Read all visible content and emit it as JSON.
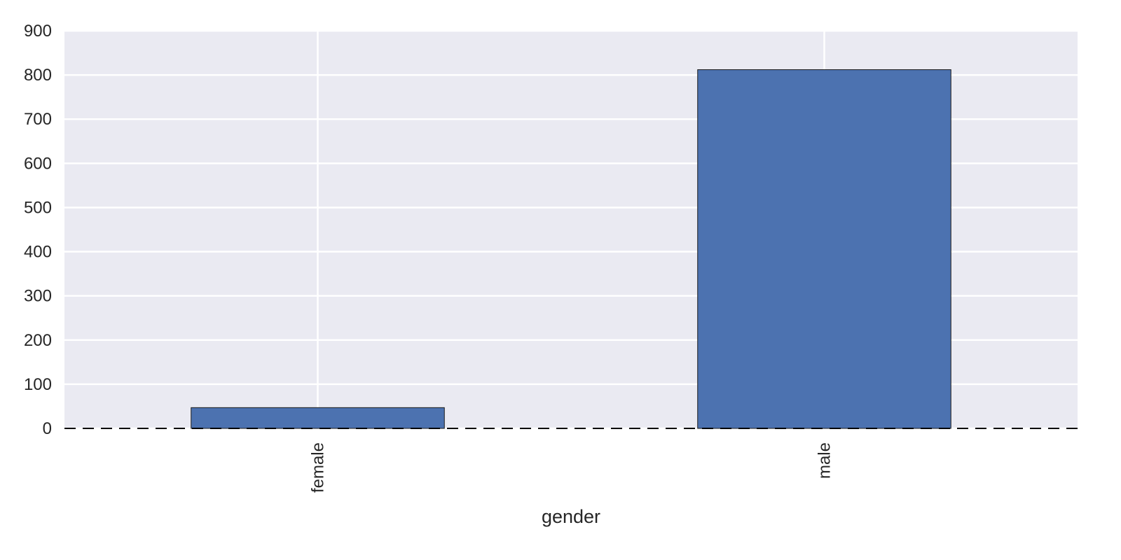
{
  "chart_data": {
    "type": "bar",
    "title": "",
    "xlabel": "gender",
    "ylabel": "",
    "categories": [
      "female",
      "male"
    ],
    "values": [
      47,
      812
    ],
    "ylim": [
      0,
      900
    ],
    "yticks": [
      0,
      100,
      200,
      300,
      400,
      500,
      600,
      700,
      800,
      900
    ],
    "grid": true,
    "legend": "none",
    "baseline": "dashed",
    "colors": {
      "plot_background": "#eaeaf2",
      "grid": "#ffffff",
      "bar": "#4c72b0",
      "bar_edge": "#1a1a1a",
      "text": "#262626"
    }
  }
}
